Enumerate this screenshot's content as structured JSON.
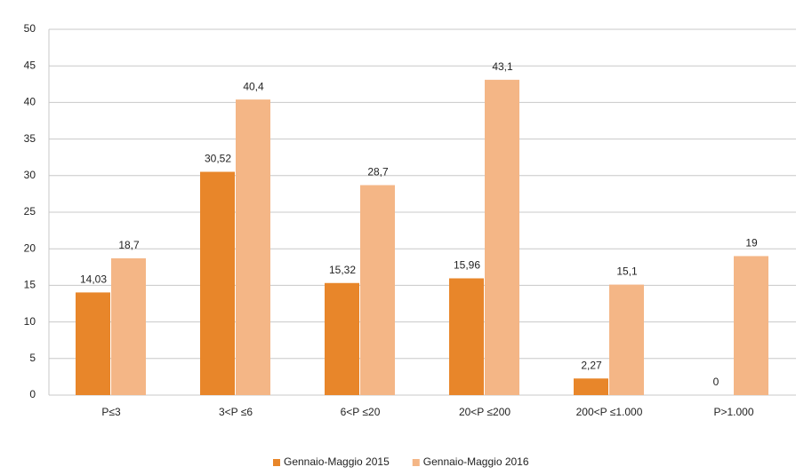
{
  "chart_data": {
    "type": "bar",
    "categories": [
      "P≤3",
      "3<P ≤6",
      "6<P ≤20",
      "20<P ≤200",
      "200<P ≤1.000",
      "P>1.000"
    ],
    "series": [
      {
        "name": "Gennaio-Maggio 2015",
        "color": "#e8862a",
        "values": [
          14.03,
          30.52,
          15.32,
          15.96,
          2.27,
          0
        ],
        "value_labels": [
          "14,03",
          "30,52",
          "15,32",
          "15,96",
          "2,27",
          "0"
        ]
      },
      {
        "name": "Gennaio-Maggio 2016",
        "color": "#f4b686",
        "values": [
          18.7,
          40.4,
          28.7,
          43.1,
          15.1,
          19
        ],
        "value_labels": [
          "18,7",
          "40,4",
          "28,7",
          "43,1",
          "15,1",
          "19"
        ]
      }
    ],
    "ylim": [
      0,
      50
    ],
    "yticks": [
      0,
      5,
      10,
      15,
      20,
      25,
      30,
      35,
      40,
      45,
      50
    ],
    "grid": true,
    "legend": "bottom"
  }
}
